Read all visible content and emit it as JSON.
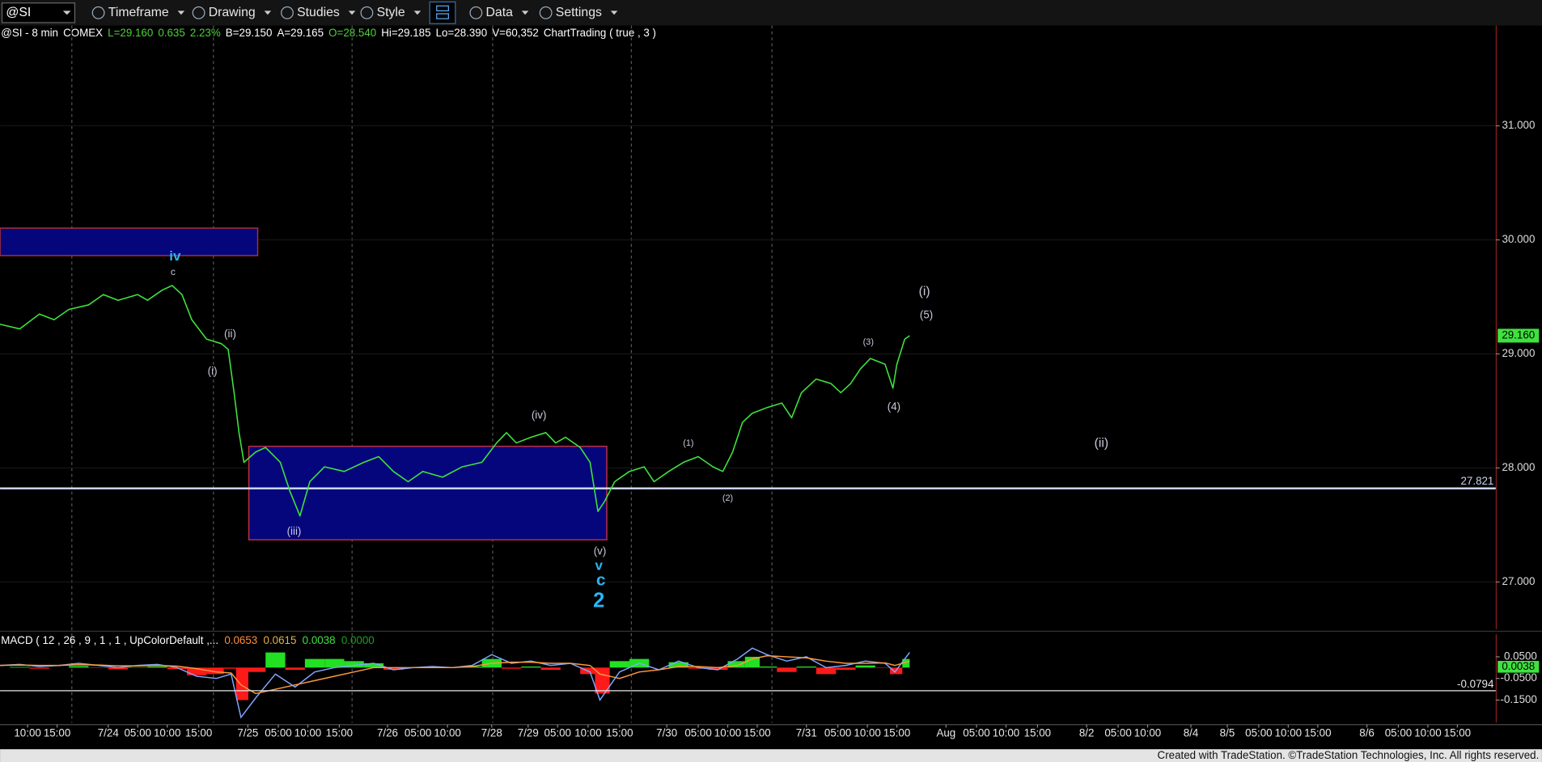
{
  "toolbar": {
    "symbol": "@SI",
    "items": [
      "Timeframe",
      "Drawing",
      "Studies",
      "Style",
      "Data",
      "Settings"
    ]
  },
  "info": [
    {
      "text": "@SI - 8 min",
      "color": "#ffffff"
    },
    {
      "text": "COMEX",
      "color": "#ffffff"
    },
    {
      "text": "L=29.160",
      "color": "#4cd137"
    },
    {
      "text": "0.635",
      "color": "#4cd137"
    },
    {
      "text": "2.23%",
      "color": "#4cd137"
    },
    {
      "text": "B=29.150",
      "color": "#ffffff"
    },
    {
      "text": "A=29.165",
      "color": "#ffffff"
    },
    {
      "text": "O=28.540",
      "color": "#4cd137"
    },
    {
      "text": "Hi=29.185",
      "color": "#ffffff"
    },
    {
      "text": "Lo=28.390",
      "color": "#ffffff"
    },
    {
      "text": "V=60,352",
      "color": "#ffffff"
    },
    {
      "text": "ChartTrading ( true , 3 )",
      "color": "#ffffff"
    }
  ],
  "chart_data": [
    {
      "type": "line",
      "color": "#3ee23e",
      "grid": true,
      "xlim": [
        0,
        1520
      ],
      "ylim": [
        26.586,
        31.879
      ],
      "yticks": [
        {
          "value": 27,
          "label": "27.000"
        },
        {
          "value": 28,
          "label": "28.000"
        },
        {
          "value": 29,
          "label": "29.000"
        },
        {
          "value": 30,
          "label": "30.000"
        },
        {
          "value": 31,
          "label": "31.000"
        }
      ],
      "xticks": [
        {
          "value": 28,
          "label": "10:00"
        },
        {
          "value": 58,
          "label": "15:00"
        },
        {
          "value": 110,
          "label": "7/24"
        },
        {
          "value": 140,
          "label": "05:00"
        },
        {
          "value": 170,
          "label": "10:00"
        },
        {
          "value": 202,
          "label": "15:00"
        },
        {
          "value": 252,
          "label": "7/25"
        },
        {
          "value": 283,
          "label": "05:00"
        },
        {
          "value": 313,
          "label": "10:00"
        },
        {
          "value": 345,
          "label": "15:00"
        },
        {
          "value": 394,
          "label": "7/26"
        },
        {
          "value": 425,
          "label": "05:00"
        },
        {
          "value": 455,
          "label": "10:00"
        },
        {
          "value": 500,
          "label": "7/28"
        },
        {
          "value": 537,
          "label": "7/29"
        },
        {
          "value": 567,
          "label": "05:00"
        },
        {
          "value": 598,
          "label": "10:00"
        },
        {
          "value": 630,
          "label": "15:00"
        },
        {
          "value": 678,
          "label": "7/30"
        },
        {
          "value": 710,
          "label": "05:00"
        },
        {
          "value": 740,
          "label": "10:00"
        },
        {
          "value": 770,
          "label": "15:00"
        },
        {
          "value": 820,
          "label": "7/31"
        },
        {
          "value": 852,
          "label": "05:00"
        },
        {
          "value": 882,
          "label": "10:00"
        },
        {
          "value": 912,
          "label": "15:00"
        },
        {
          "value": 962,
          "label": "Aug"
        },
        {
          "value": 993,
          "label": "05:00"
        },
        {
          "value": 1023,
          "label": "10:00"
        },
        {
          "value": 1055,
          "label": "15:00"
        },
        {
          "value": 1105,
          "label": "8/2"
        },
        {
          "value": 1137,
          "label": "05:00"
        },
        {
          "value": 1167,
          "label": "10:00"
        },
        {
          "value": 1211,
          "label": "8/4"
        },
        {
          "value": 1248,
          "label": "8/5"
        },
        {
          "value": 1280,
          "label": "05:00"
        },
        {
          "value": 1310,
          "label": "10:00"
        },
        {
          "value": 1340,
          "label": "15:00"
        },
        {
          "value": 1390,
          "label": "8/6"
        },
        {
          "value": 1422,
          "label": "05:00"
        },
        {
          "value": 1452,
          "label": "10:00"
        },
        {
          "value": 1482,
          "label": "15:00"
        }
      ],
      "day_separators": [
        73,
        217,
        358,
        501,
        642,
        785
      ],
      "x": [
        0,
        20,
        40,
        55,
        70,
        90,
        105,
        120,
        140,
        150,
        165,
        175,
        185,
        195,
        210,
        225,
        232,
        238,
        243,
        248,
        260,
        270,
        285,
        295,
        305,
        315,
        330,
        350,
        370,
        385,
        400,
        415,
        430,
        450,
        470,
        490,
        505,
        515,
        525,
        540,
        555,
        565,
        575,
        590,
        600,
        608,
        615,
        625,
        640,
        655,
        665,
        680,
        695,
        710,
        725,
        735,
        745,
        755,
        765,
        780,
        795,
        805,
        815,
        830,
        845,
        855,
        865,
        875,
        885,
        900,
        908,
        912,
        920,
        925
      ],
      "values": [
        29.26,
        29.22,
        29.35,
        29.3,
        29.39,
        29.43,
        29.52,
        29.47,
        29.52,
        29.47,
        29.56,
        29.6,
        29.52,
        29.3,
        29.13,
        29.09,
        29.04,
        28.66,
        28.31,
        28.05,
        28.14,
        28.18,
        28.05,
        27.79,
        27.58,
        27.88,
        28.01,
        27.97,
        28.05,
        28.1,
        27.97,
        27.88,
        27.97,
        27.92,
        28.01,
        28.05,
        28.22,
        28.31,
        28.22,
        28.27,
        28.31,
        28.22,
        28.27,
        28.18,
        28.05,
        27.62,
        27.71,
        27.88,
        27.97,
        28.01,
        27.88,
        27.97,
        28.05,
        28.1,
        28.01,
        27.97,
        28.14,
        28.4,
        28.48,
        28.53,
        28.57,
        28.44,
        28.66,
        28.78,
        28.74,
        28.66,
        28.74,
        28.87,
        28.96,
        28.91,
        28.7,
        28.91,
        29.13,
        29.16
      ],
      "last_price": {
        "value": 29.16,
        "label": "29.160",
        "color": "#3ee23e"
      },
      "hline": {
        "value": 27.821,
        "label": "27.821",
        "color": "#c8d4ee"
      },
      "boxes": [
        {
          "x": [
            0,
            262
          ],
          "y": [
            29.862,
            30.103
          ],
          "fill": "#06067c",
          "stroke": "#b03030"
        },
        {
          "x": [
            253,
            617
          ],
          "y": [
            27.37,
            28.19
          ],
          "fill": "#06067c",
          "stroke": "#c03040"
        }
      ],
      "annotations": [
        {
          "text": "iv",
          "x": 178,
          "y": 29.853,
          "color": "#29b6f6",
          "size": 14
        },
        {
          "text": "c",
          "x": 176,
          "y": 29.716,
          "color": "#c8c8d8",
          "size": 10
        },
        {
          "text": "(ii)",
          "x": 234,
          "y": 29.172,
          "color": "#c8c8d8",
          "size": 11
        },
        {
          "text": "(i)",
          "x": 216,
          "y": 28.845,
          "color": "#c8c8d8",
          "size": 11
        },
        {
          "text": "(iii)",
          "x": 299,
          "y": 27.44,
          "color": "#c8c8d8",
          "size": 11
        },
        {
          "text": "(iv)",
          "x": 548,
          "y": 28.457,
          "color": "#c8c8d8",
          "size": 11
        },
        {
          "text": "(v)",
          "x": 610,
          "y": 27.267,
          "color": "#c8c8d8",
          "size": 11
        },
        {
          "text": "v",
          "x": 609,
          "y": 27.138,
          "color": "#29b6f6",
          "size": 14
        },
        {
          "text": "c",
          "x": 611,
          "y": 27.009,
          "color": "#29b6f6",
          "size": 17
        },
        {
          "text": "2",
          "x": 609,
          "y": 26.828,
          "color": "#29b6f6",
          "size": 21
        },
        {
          "text": "(1)",
          "x": 700,
          "y": 28.216,
          "color": "#c8c8d8",
          "size": 9
        },
        {
          "text": "(2)",
          "x": 740,
          "y": 27.733,
          "color": "#c8c8d8",
          "size": 9
        },
        {
          "text": "(3)",
          "x": 883,
          "y": 29.103,
          "color": "#c8c8d8",
          "size": 9
        },
        {
          "text": "(4)",
          "x": 909,
          "y": 28.534,
          "color": "#c8c8d8",
          "size": 11
        },
        {
          "text": "(5)",
          "x": 942,
          "y": 29.336,
          "color": "#c8c8d8",
          "size": 11
        },
        {
          "text": "(i)",
          "x": 940,
          "y": 29.543,
          "color": "#c8c8d8",
          "size": 13
        },
        {
          "text": "(ii)",
          "x": 1120,
          "y": 28.216,
          "color": "#c8c8d8",
          "size": 13
        }
      ]
    },
    {
      "type": "macd",
      "title": "MACD ( 12 , 26 , 9 , 1 , 1 , UpColorDefault ,...",
      "readouts": [
        {
          "value": 0.0653,
          "label": "0.0653",
          "color": "#ff8c3a"
        },
        {
          "value": 0.0615,
          "label": "0.0615",
          "color": "#e8b04a"
        },
        {
          "value": 0.0038,
          "label": "0.0038",
          "color": "#3ee23e"
        },
        {
          "value": 0,
          "label": "0.0000",
          "color": "#1e9e1e"
        }
      ],
      "xlim": [
        0,
        1520
      ],
      "ylim": [
        -0.2545,
        0.1545
      ],
      "yticks": [
        {
          "value": 0.05,
          "label": "0.0500"
        },
        {
          "value": -0.05,
          "label": "-0.0500"
        },
        {
          "value": -0.15,
          "label": "-0.1500"
        }
      ],
      "x": [
        0,
        20,
        40,
        60,
        80,
        100,
        120,
        140,
        160,
        180,
        200,
        220,
        235,
        245,
        260,
        280,
        300,
        320,
        340,
        360,
        380,
        400,
        420,
        440,
        460,
        480,
        500,
        520,
        540,
        560,
        580,
        600,
        610,
        630,
        650,
        670,
        690,
        710,
        730,
        750,
        765,
        780,
        800,
        820,
        840,
        860,
        880,
        900,
        910,
        925
      ],
      "series": [
        {
          "color": "#7fa8ff",
          "values": [
            0.01,
            0.015,
            0.005,
            0.01,
            0.02,
            0.01,
            0.0,
            0.01,
            0.015,
            0.0,
            -0.04,
            -0.05,
            -0.03,
            -0.23,
            -0.14,
            -0.03,
            -0.09,
            -0.02,
            0.0,
            0.01,
            0.02,
            -0.01,
            0.0,
            0.005,
            0.0,
            0.01,
            0.06,
            0.02,
            0.03,
            0.01,
            0.02,
            -0.02,
            -0.15,
            -0.02,
            0.02,
            -0.01,
            0.03,
            0.0,
            -0.01,
            0.04,
            0.09,
            0.06,
            0.03,
            0.05,
            0.0,
            0.01,
            0.03,
            0.02,
            -0.02,
            0.07
          ]
        },
        {
          "color": "#ff9a3c",
          "values": [
            0.01,
            0.012,
            0.01,
            0.01,
            0.013,
            0.012,
            0.008,
            0.008,
            0.01,
            0.007,
            -0.005,
            -0.02,
            -0.025,
            -0.08,
            -0.12,
            -0.1,
            -0.08,
            -0.06,
            -0.04,
            -0.02,
            0.0,
            0.0,
            0.0,
            0.0,
            0.0,
            0.005,
            0.02,
            0.025,
            0.025,
            0.02,
            0.02,
            0.01,
            -0.03,
            -0.05,
            -0.02,
            -0.01,
            0.005,
            0.005,
            0.0,
            0.01,
            0.04,
            0.055,
            0.05,
            0.045,
            0.03,
            0.02,
            0.02,
            0.022,
            0.01,
            0.03
          ]
        }
      ],
      "histogram": {
        "up_color": "#22e022",
        "down_color": "#ff1a1a",
        "values": [
          0.0,
          0.003,
          -0.005,
          0.0,
          0.007,
          -0.002,
          -0.008,
          0.002,
          0.005,
          -0.007,
          -0.035,
          -0.03,
          -0.005,
          -0.15,
          -0.02,
          0.07,
          -0.01,
          0.04,
          0.04,
          0.03,
          0.02,
          -0.01,
          0.0,
          0.005,
          0.0,
          0.005,
          0.04,
          -0.005,
          0.005,
          -0.01,
          0.0,
          -0.03,
          -0.12,
          0.03,
          0.04,
          0.0,
          0.025,
          -0.005,
          -0.01,
          0.03,
          0.05,
          0.005,
          -0.02,
          0.005,
          -0.03,
          -0.01,
          0.01,
          -0.002,
          -0.03,
          0.04
        ]
      },
      "tag": {
        "value": 0.0038,
        "label": "0.0038",
        "color": "#3ee23e"
      },
      "hline": {
        "value": -0.0794,
        "label": "-0.0794",
        "color": "#e8e8e8"
      }
    }
  ],
  "footer": "Created with TradeStation. ©TradeStation Technologies, Inc. All rights reserved."
}
